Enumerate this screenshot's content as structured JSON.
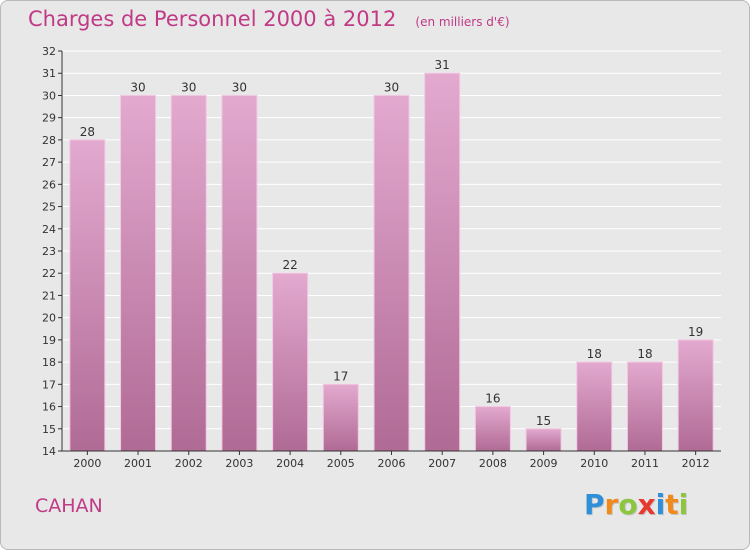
{
  "header": {
    "title": "Charges de Personnel 2000 à 2012",
    "subtitle": "(en milliers d'€)"
  },
  "commune": "CAHAN",
  "brand": {
    "letters": [
      "P",
      "r",
      "o",
      "x",
      "i",
      "t",
      "i"
    ],
    "colors": [
      "#2f8fd8",
      "#f08a1c",
      "#8cc63f",
      "#e8392f",
      "#2f8fd8",
      "#f08a1c",
      "#8cc63f"
    ]
  },
  "colors": {
    "bar_fill_top": "#e3a9cf",
    "bar_fill_bottom": "#b06b95",
    "axis": "#333333",
    "grid": "#ffffff",
    "accent": "#c03a86"
  },
  "chart_data": {
    "type": "bar",
    "title": "Charges de Personnel 2000 à 2012",
    "subtitle": "(en milliers d'€)",
    "categories": [
      "2000",
      "2001",
      "2002",
      "2003",
      "2004",
      "2005",
      "2006",
      "2007",
      "2008",
      "2009",
      "2010",
      "2011",
      "2012"
    ],
    "values": [
      28,
      30,
      30,
      30,
      22,
      17,
      30,
      31,
      16,
      15,
      18,
      18,
      19
    ],
    "ylim": [
      14,
      32
    ],
    "yticks": [
      14,
      15,
      16,
      17,
      18,
      19,
      20,
      21,
      22,
      23,
      24,
      25,
      26,
      27,
      28,
      29,
      30,
      31,
      32
    ],
    "grid": true,
    "data_labels": true
  }
}
